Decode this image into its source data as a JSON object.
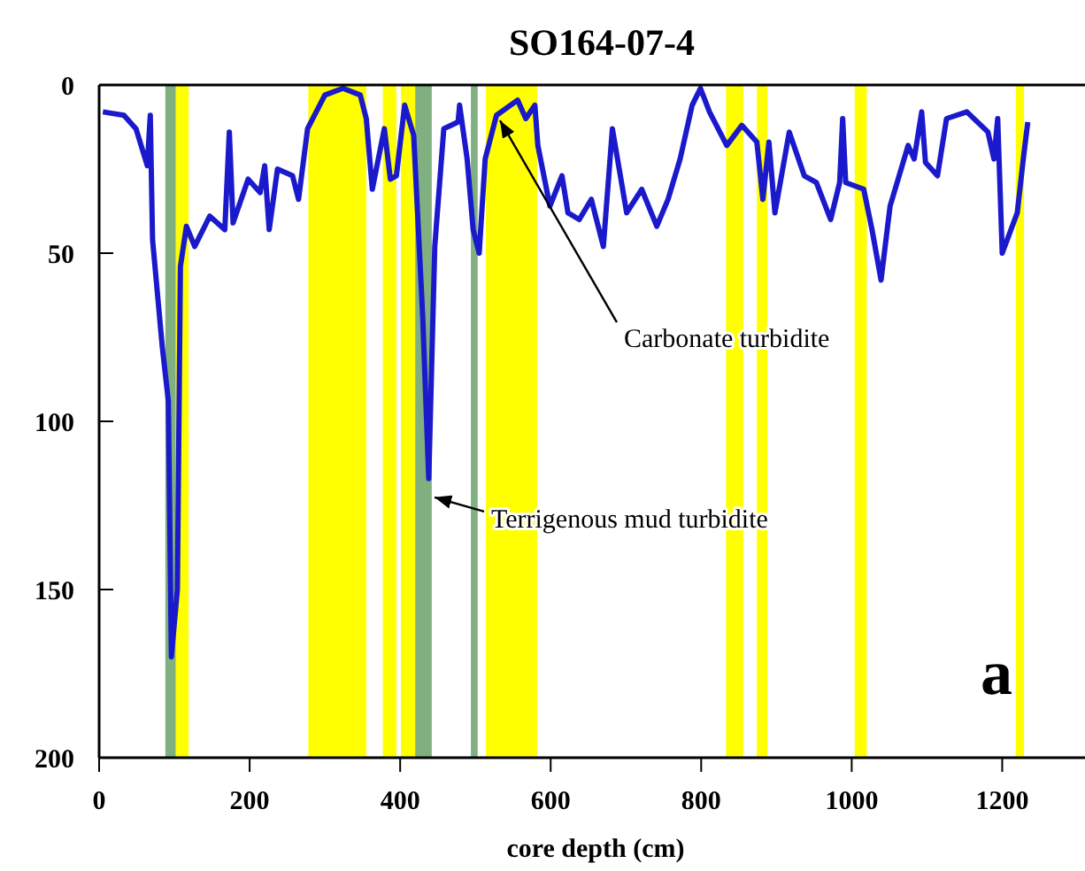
{
  "chart_data": {
    "type": "line",
    "title": "SO164-07-4",
    "xlabel": "core depth (cm)",
    "xlim": [
      0,
      1310
    ],
    "xticks": [
      0,
      200,
      400,
      600,
      800,
      1000,
      1200
    ],
    "ylim": [
      200,
      0
    ],
    "yticks": [
      0,
      50,
      100,
      150,
      200
    ],
    "grid": false,
    "marker": "none",
    "line_style": "solid",
    "series": [
      {
        "color": "#1a1acc",
        "x": [
          5,
          33,
          49,
          64,
          68,
          71,
          84,
          92,
          96,
          104,
          108,
          116,
          127,
          147,
          167,
          173,
          178,
          198,
          214,
          220,
          226,
          237,
          257,
          265,
          277,
          300,
          324,
          347,
          355,
          363,
          379,
          387,
          395,
          406,
          418,
          430,
          438,
          446,
          458,
          477,
          479,
          489,
          497,
          505,
          513,
          528,
          556,
          567,
          579,
          583,
          599,
          615,
          623,
          638,
          654,
          670,
          682,
          701,
          721,
          741,
          756,
          772,
          788,
          799,
          811,
          834,
          854,
          874,
          882,
          890,
          898,
          917,
          937,
          953,
          972,
          984,
          988,
          992,
          1016,
          1027,
          1039,
          1051,
          1075,
          1083,
          1093,
          1098,
          1114,
          1126,
          1153,
          1181,
          1189,
          1194,
          1200,
          1220,
          1228,
          1234
        ],
        "values": [
          8,
          9,
          13,
          24,
          9,
          46,
          78,
          94,
          170,
          150,
          54,
          42,
          48,
          39,
          43,
          14,
          41,
          28,
          32,
          24,
          43,
          25,
          27,
          34,
          13,
          3,
          1,
          3,
          10,
          31,
          13,
          28,
          27,
          6,
          15,
          69,
          117,
          48,
          13,
          11,
          6,
          22,
          43,
          50,
          22,
          9,
          4.5,
          10,
          6,
          18,
          36,
          27,
          38,
          40,
          34,
          48,
          13,
          38,
          31,
          42,
          34,
          22,
          6,
          1,
          8,
          18,
          12,
          17,
          34,
          17,
          38,
          14,
          27,
          29,
          40,
          29,
          10,
          29,
          31,
          43,
          58,
          36,
          18,
          22,
          8,
          23,
          27,
          10,
          8,
          14,
          22,
          10,
          50,
          38,
          22,
          11
        ]
      }
    ],
    "bands": [
      {
        "axis": "x",
        "from": 88,
        "to": 102,
        "color": "#80b080"
      },
      {
        "axis": "x",
        "from": 102,
        "to": 119,
        "color": "#ffff00"
      },
      {
        "axis": "x",
        "from": 278,
        "to": 355,
        "color": "#ffff00"
      },
      {
        "axis": "x",
        "from": 377,
        "to": 395,
        "color": "#ffff00"
      },
      {
        "axis": "x",
        "from": 401,
        "to": 420,
        "color": "#ffff00"
      },
      {
        "axis": "x",
        "from": 420,
        "to": 442,
        "color": "#80b080"
      },
      {
        "axis": "x",
        "from": 494,
        "to": 503,
        "color": "#80b080"
      },
      {
        "axis": "x",
        "from": 514,
        "to": 582,
        "color": "#ffff00"
      },
      {
        "axis": "x",
        "from": 833,
        "to": 856,
        "color": "#ffff00"
      },
      {
        "axis": "x",
        "from": 874,
        "to": 888,
        "color": "#ffff00"
      },
      {
        "axis": "x",
        "from": 1004,
        "to": 1020,
        "color": "#ffff00"
      },
      {
        "axis": "x",
        "from": 1218,
        "to": 1229,
        "color": "#ffff00"
      }
    ],
    "annotations": [
      {
        "text": "Carbonate turbidite",
        "x": 528,
        "y": 9
      },
      {
        "text": "Terrigenous mud turbidite",
        "x": 441,
        "y": 121
      },
      "a"
    ]
  }
}
